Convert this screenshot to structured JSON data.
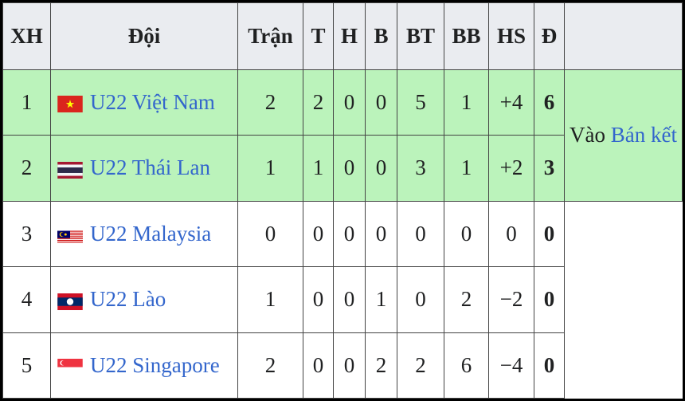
{
  "headers": [
    "XH",
    "Đội",
    "Trận",
    "T",
    "H",
    "B",
    "BT",
    "BB",
    "HS",
    "Đ"
  ],
  "rows": [
    {
      "pos": "1",
      "team": "U22 Việt Nam",
      "flag": "vietnam-flag",
      "p": "2",
      "w": "2",
      "d": "0",
      "l": "0",
      "gf": "5",
      "ga": "1",
      "gd": "+4",
      "pts": "6"
    },
    {
      "pos": "2",
      "team": "U22 Thái Lan",
      "flag": "thailand-flag",
      "p": "1",
      "w": "1",
      "d": "0",
      "l": "0",
      "gf": "3",
      "ga": "1",
      "gd": "+2",
      "pts": "3"
    },
    {
      "pos": "3",
      "team": "U22 Malaysia",
      "flag": "malaysia-flag",
      "p": "0",
      "w": "0",
      "d": "0",
      "l": "0",
      "gf": "0",
      "ga": "0",
      "gd": "0",
      "pts": "0"
    },
    {
      "pos": "4",
      "team": "U22 Lào",
      "flag": "laos-flag",
      "p": "1",
      "w": "0",
      "d": "0",
      "l": "1",
      "gf": "0",
      "ga": "2",
      "gd": "−2",
      "pts": "0"
    },
    {
      "pos": "5",
      "team": "U22 Singapore",
      "flag": "singapore-flag",
      "p": "2",
      "w": "0",
      "d": "0",
      "l": "2",
      "gf": "2",
      "ga": "6",
      "gd": "−4",
      "pts": "0"
    }
  ],
  "qualification": {
    "prefix": "Vào ",
    "link": "Bán kết"
  },
  "colors": {
    "advance": "#bbf3bb",
    "header": "#eaecf0",
    "link": "#3366cc"
  }
}
